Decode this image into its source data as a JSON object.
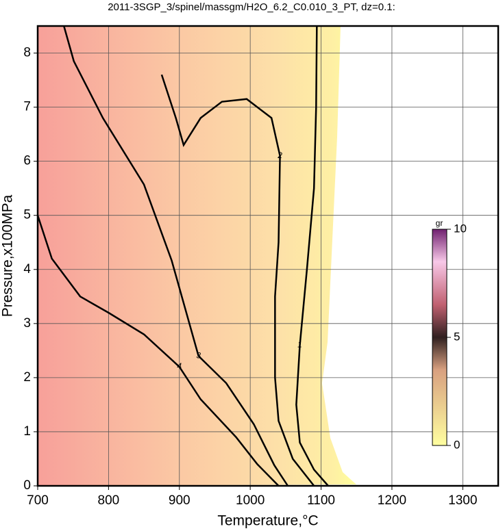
{
  "chart_data": {
    "type": "contour",
    "title": "2011-3SGP_3/spinel/massgm/H2O_6.2_C0.010_3_PT, dz=0.1:",
    "x_label": "Temperature,°C",
    "y_label": "Pressure,x100MPa",
    "xlim": [
      700,
      1350
    ],
    "ylim": [
      0,
      8.5
    ],
    "xticks": [
      700,
      800,
      900,
      1000,
      1100,
      1200,
      1300
    ],
    "yticks": [
      0,
      1,
      2,
      3,
      4,
      5,
      6,
      7,
      8
    ],
    "grid": true,
    "contours": [
      {
        "level": 1,
        "x": [
          1094,
          1093,
          1090,
          1080,
          1070,
          1065,
          1070,
          1090,
          1110
        ],
        "y": [
          8.5,
          7,
          5.5,
          4,
          2.6,
          1.5,
          0.8,
          0.3,
          0
        ]
      },
      {
        "level": 2,
        "x": [
          875,
          895,
          906,
          930,
          960,
          995,
          1030,
          1042,
          1040,
          1035,
          1035,
          1040,
          1060,
          1090
        ],
        "y": [
          7.6,
          6.8,
          6.3,
          6.8,
          7.1,
          7.15,
          6.8,
          6.1,
          4.5,
          3.5,
          2.0,
          1.2,
          0.5,
          0
        ]
      },
      {
        "level": 3,
        "x": [
          737,
          751,
          792,
          850,
          889,
          927,
          966,
          1005,
          1034,
          1053
        ],
        "y": [
          8.5,
          7.85,
          6.8,
          5.57,
          4.17,
          2.4,
          1.9,
          1.14,
          0.38,
          0
        ]
      },
      {
        "level": 4,
        "x": [
          700,
          720,
          760,
          800,
          850,
          900,
          930,
          980,
          1010,
          1040
        ],
        "y": [
          5.0,
          4.2,
          3.5,
          3.2,
          2.8,
          2.2,
          1.6,
          0.9,
          0.4,
          0
        ]
      }
    ],
    "colorbar": {
      "label": "gr",
      "lim": [
        0,
        10
      ],
      "ticks": [
        0,
        5,
        10
      ]
    }
  }
}
